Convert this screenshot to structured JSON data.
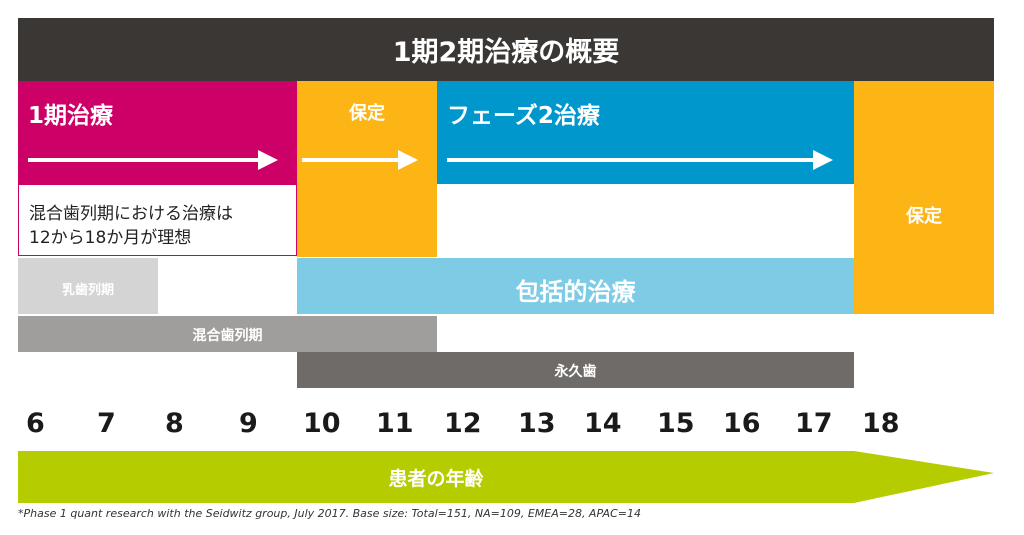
{
  "title": "1期2期治療の概要",
  "blocks": {
    "phase1": "1期治療",
    "phase1_note_line1": "混合歯列期における治療は",
    "phase1_note_line2": "12から18か月が理想",
    "retention_small": "保定",
    "phase2": "フェーズ2治療",
    "retention_right": "保定",
    "primary_dentition": "乳歯列期",
    "comprehensive": "包括的治療",
    "mixed_dentition": "混合歯列期",
    "permanent_dentition": "永久歯"
  },
  "ages": [
    "6",
    "7",
    "8",
    "9",
    "10",
    "11",
    "12",
    "13",
    "14",
    "15",
    "16",
    "17",
    "18"
  ],
  "age_axis_label": "患者の年齢",
  "footnote": "*Phase 1 quant research with the Seidwitz group, July 2017. Base size: Total=151, NA=109, EMEA=28, APAC=14",
  "colors": {
    "title_bg": "#3a3735",
    "phase1": "#cc0066",
    "retention": "#fdb515",
    "phase2": "#0098cc",
    "comprehensive": "#7ecbe6",
    "primary": "#d4d4d4",
    "mixed": "#a09e9c",
    "permanent": "#6f6b68",
    "age_arrow": "#b5cc00"
  }
}
